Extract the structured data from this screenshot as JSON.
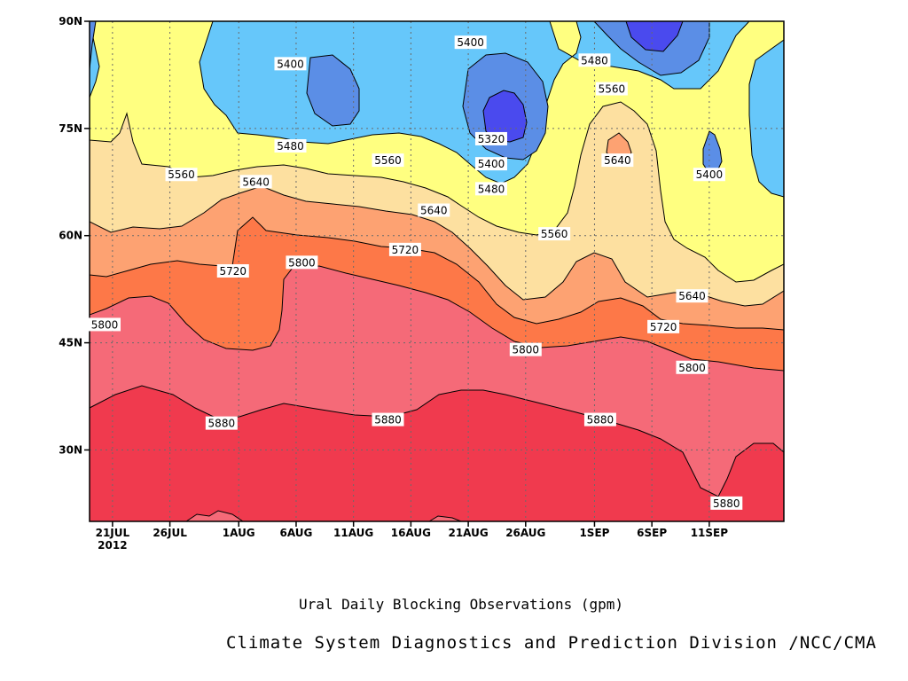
{
  "chart_data": {
    "type": "contour",
    "title": "Ural Daily Blocking Observations (gpm)",
    "credit": "Climate System Diagnostics and Prediction Division /NCC/CMA",
    "xlabel": "",
    "ylabel": "",
    "x_ticks": [
      {
        "label": "21JUL",
        "sub": "2012",
        "day": 2
      },
      {
        "label": "26JUL",
        "sub": "",
        "day": 7
      },
      {
        "label": "1AUG",
        "sub": "",
        "day": 13
      },
      {
        "label": "6AUG",
        "sub": "",
        "day": 18
      },
      {
        "label": "11AUG",
        "sub": "",
        "day": 23
      },
      {
        "label": "16AUG",
        "sub": "",
        "day": 28
      },
      {
        "label": "21AUG",
        "sub": "",
        "day": 33
      },
      {
        "label": "26AUG",
        "sub": "",
        "day": 38
      },
      {
        "label": "1SEP",
        "sub": "",
        "day": 44
      },
      {
        "label": "6SEP",
        "sub": "",
        "day": 49
      },
      {
        "label": "11SEP",
        "sub": "",
        "day": 54
      }
    ],
    "x_range": [
      0,
      60.5
    ],
    "y_ticks": [
      {
        "label": "30N",
        "lat": 30
      },
      {
        "label": "45N",
        "lat": 45
      },
      {
        "label": "60N",
        "lat": 60
      },
      {
        "label": "75N",
        "lat": 75
      },
      {
        "label": "90N",
        "lat": 90
      }
    ],
    "y_range": [
      20,
      90
    ],
    "grid": true,
    "levels": [
      5320,
      5400,
      5480,
      5560,
      5640,
      5720,
      5800,
      5880
    ],
    "colors": {
      "lt5320": "#4a4aee",
      "5320": "#5b8ee6",
      "5400": "#66c7fa",
      "5480": "#ffff80",
      "5560": "#fde0a0",
      "5640": "#fda272",
      "5720": "#fd7848",
      "5800": "#f56a78",
      "5880": "#f03a4e"
    },
    "contour_labels": [
      {
        "text": "5400",
        "day": 33.2,
        "lat": 87.0
      },
      {
        "text": "5400",
        "day": 17.5,
        "lat": 84.0
      },
      {
        "text": "5480",
        "day": 44.0,
        "lat": 84.5
      },
      {
        "text": "5560",
        "day": 45.5,
        "lat": 80.5
      },
      {
        "text": "5320",
        "day": 35.0,
        "lat": 73.5
      },
      {
        "text": "5480",
        "day": 17.5,
        "lat": 72.5
      },
      {
        "text": "5560",
        "day": 26.0,
        "lat": 70.5
      },
      {
        "text": "5400",
        "day": 35.0,
        "lat": 70.0
      },
      {
        "text": "5640",
        "day": 46.0,
        "lat": 70.5
      },
      {
        "text": "5400",
        "day": 54.0,
        "lat": 68.5
      },
      {
        "text": "5560",
        "day": 8.0,
        "lat": 68.5
      },
      {
        "text": "5640",
        "day": 14.5,
        "lat": 67.5
      },
      {
        "text": "5480",
        "day": 35.0,
        "lat": 66.5
      },
      {
        "text": "5640",
        "day": 30.0,
        "lat": 63.5
      },
      {
        "text": "5560",
        "day": 40.5,
        "lat": 60.2
      },
      {
        "text": "5720",
        "day": 27.5,
        "lat": 58.0
      },
      {
        "text": "5800",
        "day": 18.5,
        "lat": 56.2
      },
      {
        "text": "5720",
        "day": 12.5,
        "lat": 55.0
      },
      {
        "text": "5640",
        "day": 52.5,
        "lat": 51.5
      },
      {
        "text": "5800",
        "day": 0.0,
        "lat": 47.5
      },
      {
        "text": "5720",
        "day": 50.0,
        "lat": 47.2
      },
      {
        "text": "5800",
        "day": 38.0,
        "lat": 44.0
      },
      {
        "text": "5800",
        "day": 52.5,
        "lat": 41.5
      },
      {
        "text": "5880",
        "day": 11.5,
        "lat": 33.7
      },
      {
        "text": "5880",
        "day": 26.0,
        "lat": 34.2
      },
      {
        "text": "5880",
        "day": 44.5,
        "lat": 34.2
      },
      {
        "text": "5880",
        "day": 55.5,
        "lat": 22.5
      }
    ]
  }
}
